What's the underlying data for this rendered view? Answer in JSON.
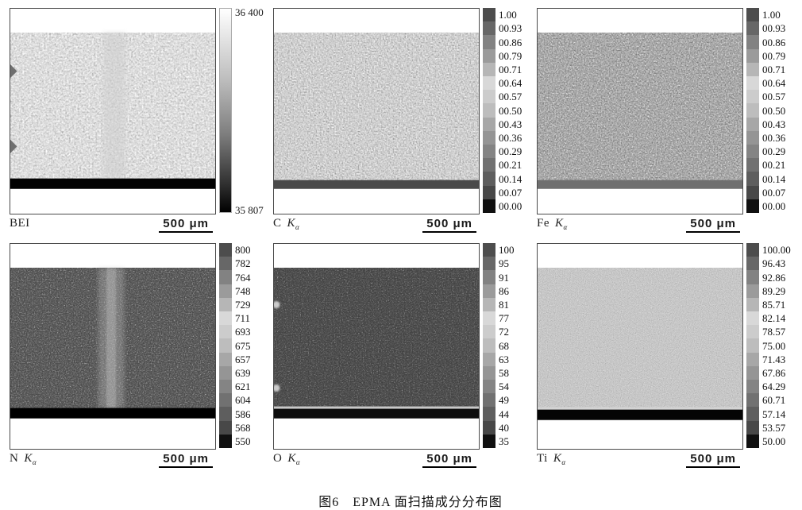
{
  "caption": "图6　EPMA 面扫描成分分布图",
  "scale_bar": "500 μm",
  "colorbar_grays": [
    "#4d4d4d",
    "#676767",
    "#828282",
    "#9b9b9b",
    "#b6b6b6",
    "#d8d8d8",
    "#cccccc",
    "#bdbdbd",
    "#a7a7a7",
    "#959595",
    "#848484",
    "#717171",
    "#5e5e5e",
    "#484848",
    "#101010"
  ],
  "panels": [
    {
      "element": "BEI",
      "colorbar": {
        "type": "continuous",
        "max": "36 400",
        "min": "35 807"
      }
    },
    {
      "element": "C",
      "suffix_main": "K",
      "suffix_sub": "α",
      "colorbar": {
        "type": "segmented",
        "ticks": [
          "1.00",
          "00.93",
          "00.86",
          "00.79",
          "00.71",
          "00.64",
          "00.57",
          "00.50",
          "00.43",
          "00.36",
          "00.29",
          "00.21",
          "00.14",
          "00.07",
          "00.00"
        ]
      }
    },
    {
      "element": "Fe",
      "suffix_main": "K",
      "suffix_sub": "α",
      "colorbar": {
        "type": "segmented",
        "ticks": [
          "1.00",
          "00.93",
          "00.86",
          "00.79",
          "00.71",
          "00.64",
          "00.57",
          "00.50",
          "00.43",
          "00.36",
          "00.29",
          "00.21",
          "00.14",
          "00.07",
          "00.00"
        ]
      }
    },
    {
      "element": "N",
      "suffix_main": "K",
      "suffix_sub": "α",
      "colorbar": {
        "type": "segmented",
        "ticks": [
          "800",
          "782",
          "764",
          "748",
          "729",
          "711",
          "693",
          "675",
          "657",
          "639",
          "621",
          "604",
          "586",
          "568",
          "550"
        ]
      }
    },
    {
      "element": "O",
      "suffix_main": "K",
      "suffix_sub": "α",
      "colorbar": {
        "type": "segmented",
        "ticks": [
          "100",
          "95",
          "91",
          "86",
          "81",
          "77",
          "72",
          "68",
          "63",
          "58",
          "54",
          "49",
          "44",
          "40",
          "35"
        ]
      }
    },
    {
      "element": "Ti",
      "suffix_main": "K",
      "suffix_sub": "α",
      "colorbar": {
        "type": "segmented",
        "ticks": [
          "100.00",
          "96.43",
          "92.86",
          "89.29",
          "85.71",
          "82.14",
          "78.57",
          "75.00",
          "71.43",
          "67.86",
          "64.29",
          "60.71",
          "57.14",
          "53.57",
          "50.00"
        ]
      }
    }
  ]
}
